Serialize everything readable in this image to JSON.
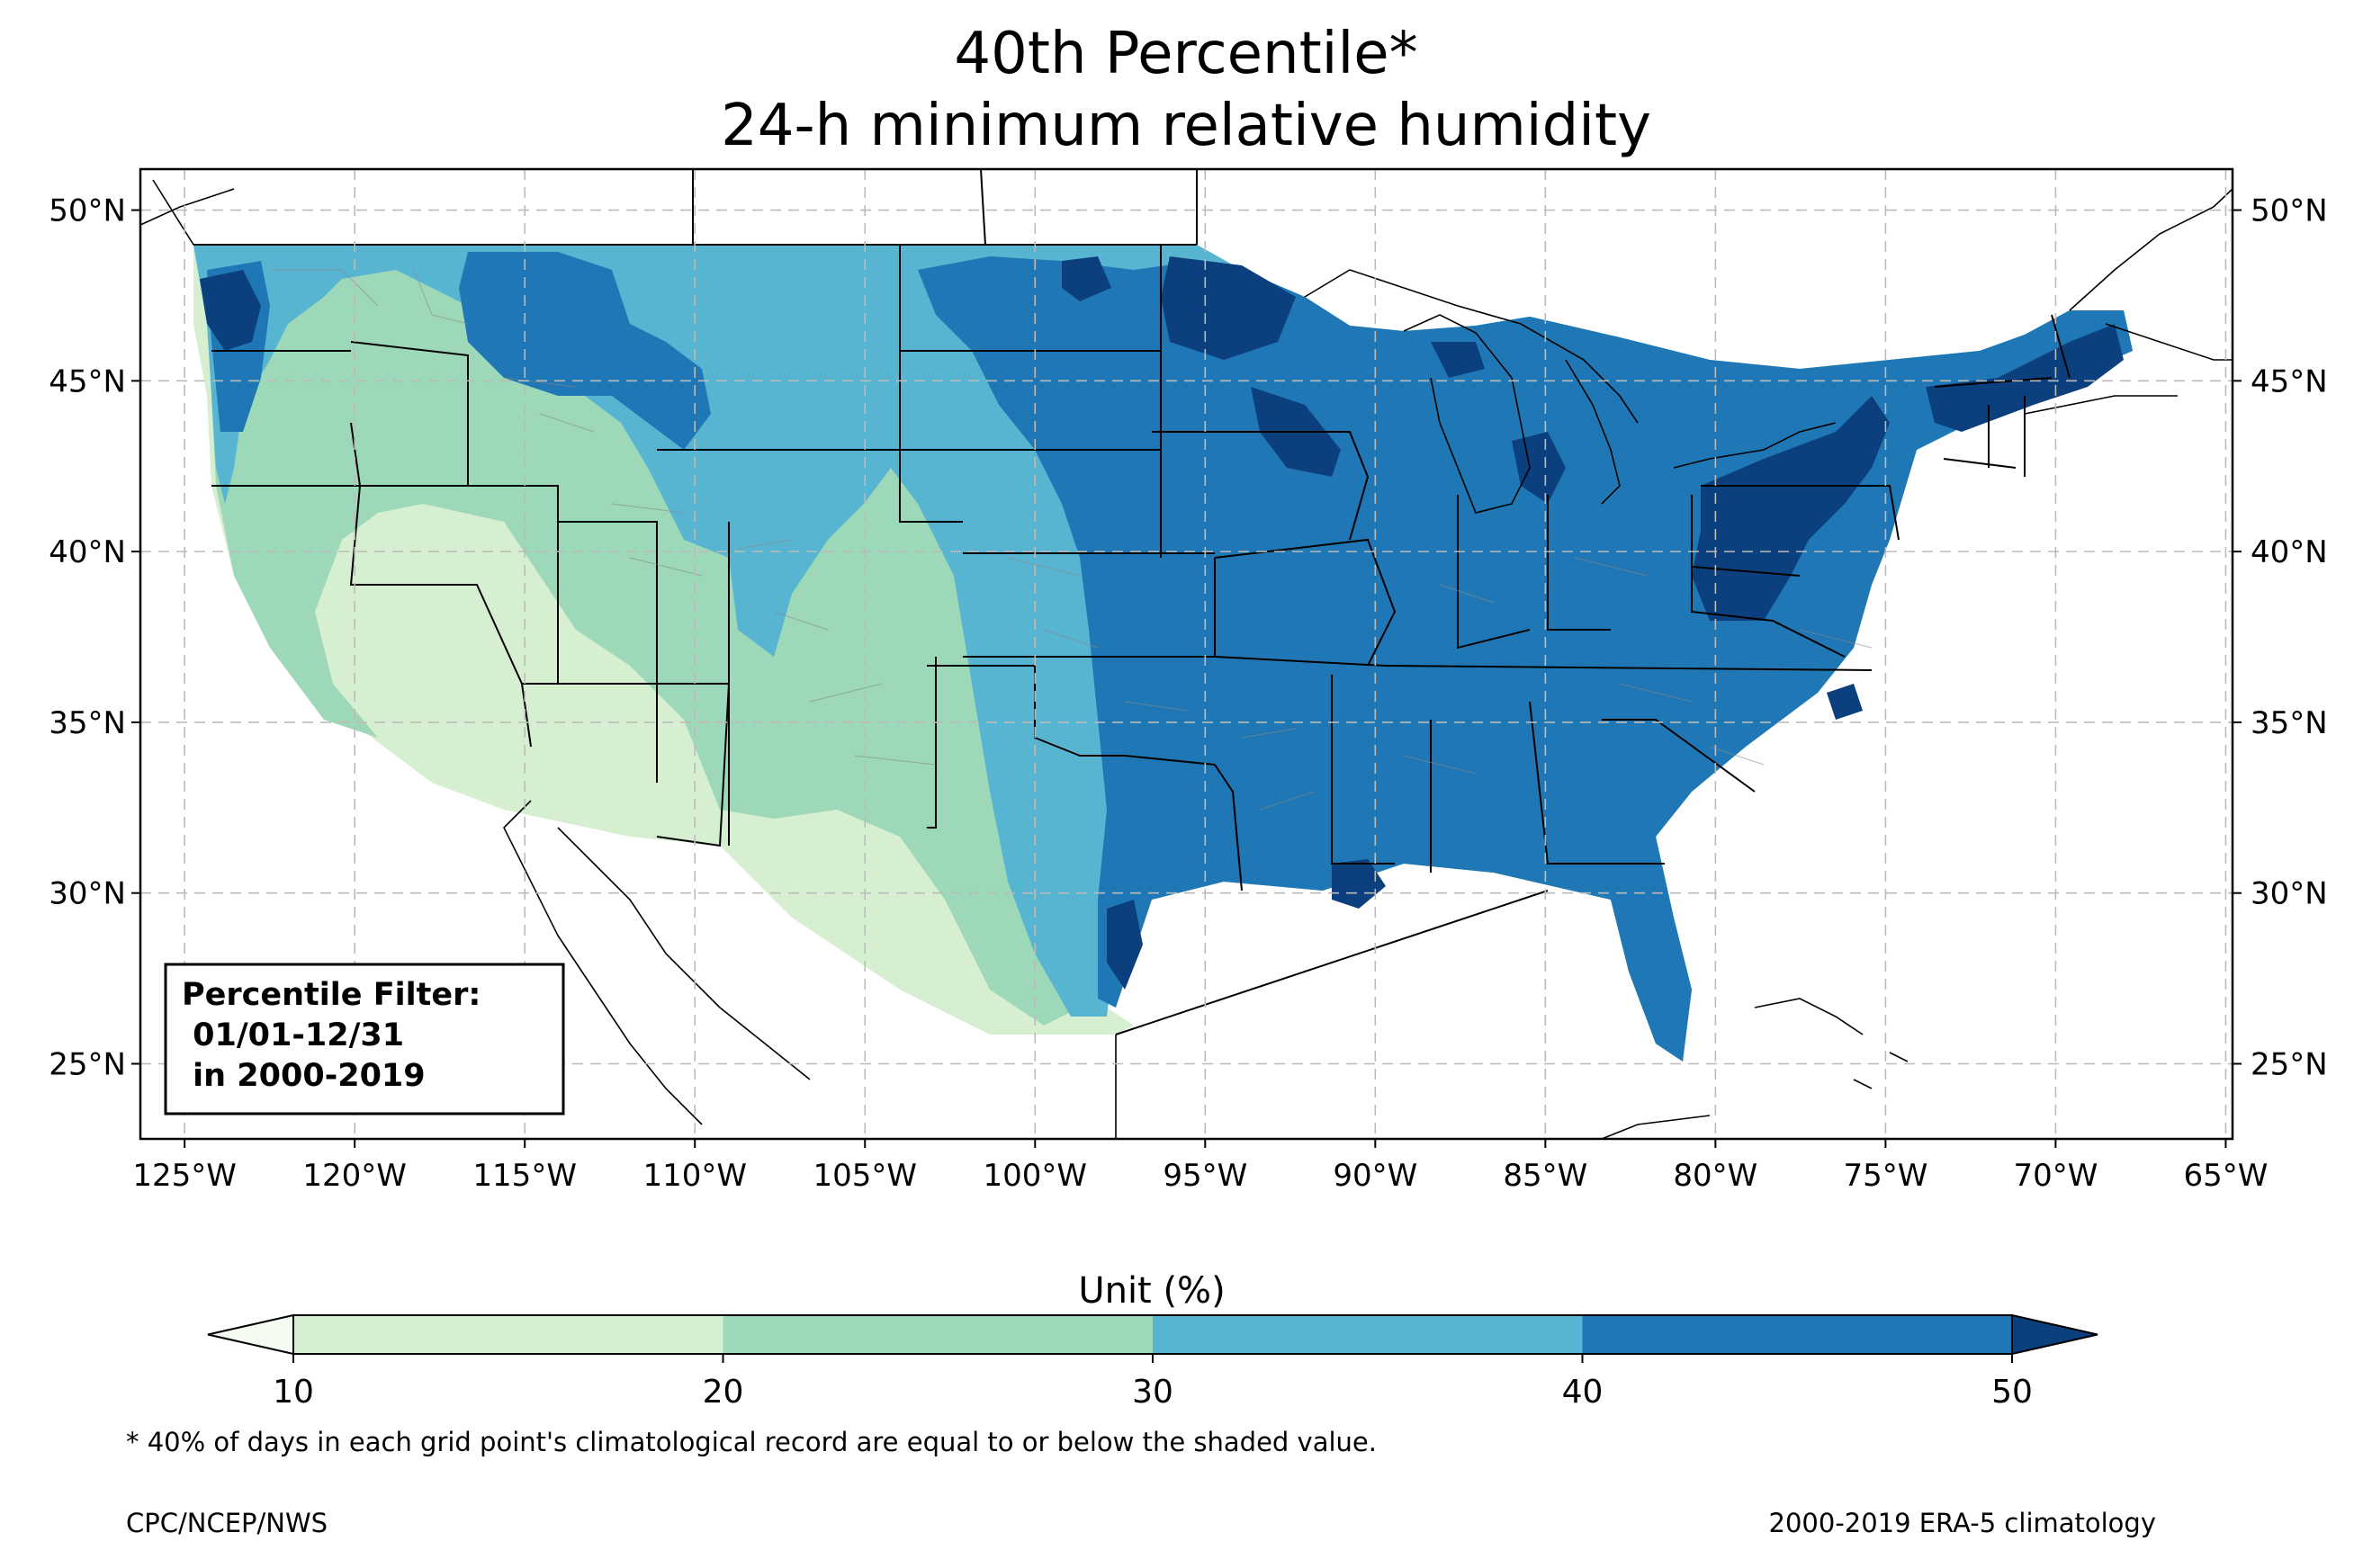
{
  "title": {
    "line1": "40th Percentile*",
    "line2": "24-h minimum relative humidity"
  },
  "map": {
    "lon_range": [
      -126.3,
      -64.8
    ],
    "lat_range": [
      22.8,
      51.2
    ],
    "lon_ticks": [
      {
        "value": -125,
        "label": "125°W"
      },
      {
        "value": -120,
        "label": "120°W"
      },
      {
        "value": -115,
        "label": "115°W"
      },
      {
        "value": -110,
        "label": "110°W"
      },
      {
        "value": -105,
        "label": "105°W"
      },
      {
        "value": -100,
        "label": "100°W"
      },
      {
        "value": -95,
        "label": "95°W"
      },
      {
        "value": -90,
        "label": "90°W"
      },
      {
        "value": -85,
        "label": "85°W"
      },
      {
        "value": -80,
        "label": "80°W"
      },
      {
        "value": -75,
        "label": "75°W"
      },
      {
        "value": -70,
        "label": "70°W"
      },
      {
        "value": -65,
        "label": "65°W"
      }
    ],
    "lat_ticks": [
      {
        "value": 25,
        "label": "25°N"
      },
      {
        "value": 30,
        "label": "30°N"
      },
      {
        "value": 35,
        "label": "35°N"
      },
      {
        "value": 40,
        "label": "40°N"
      },
      {
        "value": 45,
        "label": "45°N"
      },
      {
        "value": 50,
        "label": "50°N"
      }
    ],
    "gridlines": true,
    "filter_box": {
      "line1": "Percentile Filter:",
      "line2": " 01/01-12/31",
      "line3": " in 2000-2019"
    }
  },
  "colorbar": {
    "label": "Unit (%)",
    "ticks": [
      "10",
      "20",
      "30",
      "40",
      "50"
    ],
    "bins": [
      {
        "from": 10,
        "to": 20,
        "color": "#d6efd0"
      },
      {
        "from": 20,
        "to": 30,
        "color": "#9dd8b9"
      },
      {
        "from": 30,
        "to": 40,
        "color": "#58b5d1"
      },
      {
        "from": 40,
        "to": 50,
        "color": "#1f78b5"
      }
    ],
    "under_color": "#f4fbf0",
    "over_color": "#0b3f7e",
    "extend": "both"
  },
  "footnote": "* 40% of days in each grid point's climatological record are equal to or below the shaded value.",
  "credit_left": "CPC/NCEP/NWS",
  "credit_right": "2000-2019 ERA-5 climatology"
}
